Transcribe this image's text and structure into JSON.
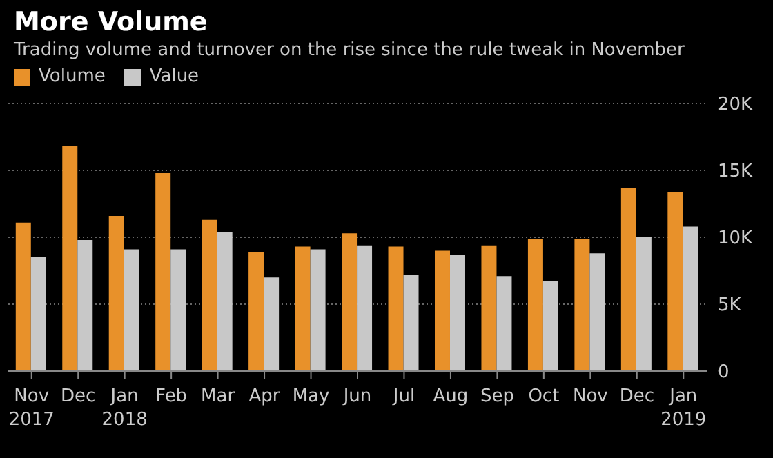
{
  "chart_data": {
    "type": "bar",
    "title": "More Volume",
    "subtitle": "Trading volume and turnover on the rise since the rule tweak in November",
    "categories": [
      "Nov 2017",
      "Dec",
      "Jan 2018",
      "Feb",
      "Mar",
      "Apr",
      "May",
      "Jun",
      "Jul",
      "Aug",
      "Sep",
      "Oct",
      "Nov",
      "Dec",
      "Jan 2019"
    ],
    "series": [
      {
        "name": "Volume",
        "color": "#e8912a",
        "values": [
          11100,
          16800,
          11600,
          14800,
          11300,
          8900,
          9300,
          10300,
          9300,
          9000,
          9400,
          9900,
          9900,
          13700,
          13400
        ]
      },
      {
        "name": "Value",
        "color": "#c8c8c8",
        "values": [
          8500,
          9800,
          9100,
          9100,
          10400,
          7000,
          9100,
          9400,
          7200,
          8700,
          7100,
          6700,
          8800,
          10000,
          10800
        ]
      }
    ],
    "ylim": [
      0,
      20000
    ],
    "yticks": [
      0,
      {
        "value": 5000,
        "label": "5K"
      },
      {
        "value": 10000,
        "label": "10K"
      },
      {
        "value": 15000,
        "label": "15K"
      },
      {
        "value": 20000,
        "label": "20K"
      }
    ],
    "grid": "y",
    "legend": "top left"
  }
}
